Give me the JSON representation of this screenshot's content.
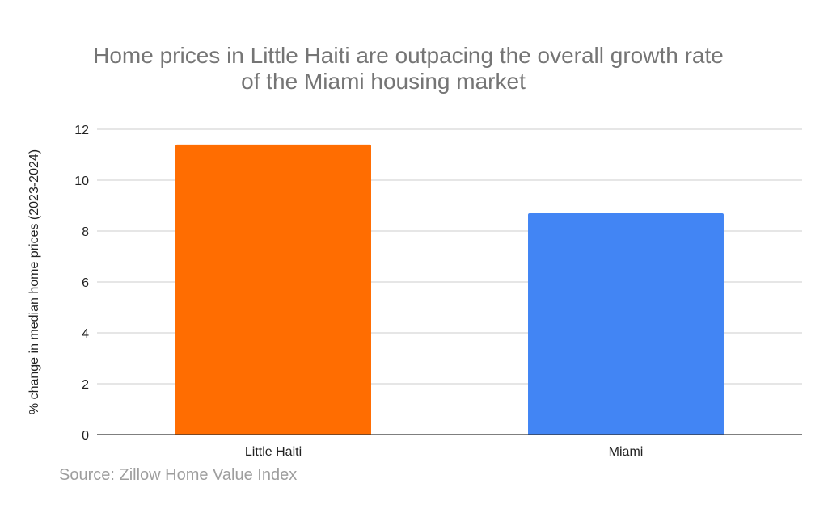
{
  "chart_data": {
    "type": "bar",
    "title_lines": [
      "Home prices in Little Haiti are outpacing the overall growth rate",
      "of the Miami housing market"
    ],
    "categories": [
      "Little Haiti",
      "Miami"
    ],
    "values": [
      11.4,
      8.7
    ],
    "colors": [
      "#ff6d01",
      "#4285f4"
    ],
    "xlabel": "",
    "ylabel": "% change in median home prices (2023-2024)",
    "ylim": [
      0,
      12
    ],
    "yticks": [
      0,
      2,
      4,
      6,
      8,
      10,
      12
    ],
    "grid": true,
    "legend": "none"
  },
  "source": "Source: Zillow Home Value Index"
}
